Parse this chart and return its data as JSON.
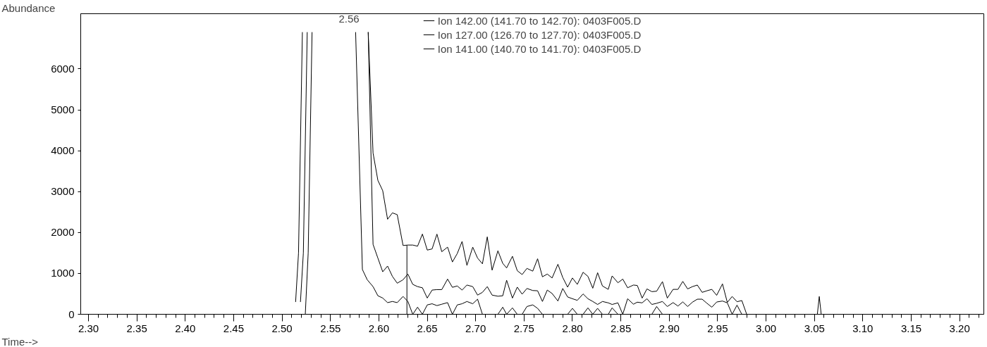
{
  "chart_data": {
    "type": "line",
    "xlabel": "Time-->",
    "ylabel": "Abundance",
    "xlim": [
      2.292,
      3.225
    ],
    "ylim": [
      0,
      7350
    ],
    "xticks": [
      {
        "value": 2.3,
        "label": "2.30"
      },
      {
        "value": 2.35,
        "label": "2.35"
      },
      {
        "value": 2.4,
        "label": "2.40"
      },
      {
        "value": 2.45,
        "label": "2.45"
      },
      {
        "value": 2.5,
        "label": "2.50"
      },
      {
        "value": 2.55,
        "label": "2.55"
      },
      {
        "value": 2.6,
        "label": "2.60"
      },
      {
        "value": 2.65,
        "label": "2.65"
      },
      {
        "value": 2.7,
        "label": "2.70"
      },
      {
        "value": 2.75,
        "label": "2.75"
      },
      {
        "value": 2.8,
        "label": "2.80"
      },
      {
        "value": 2.85,
        "label": "2.85"
      },
      {
        "value": 2.9,
        "label": "2.90"
      },
      {
        "value": 2.95,
        "label": "2.95"
      },
      {
        "value": 3.0,
        "label": "3.00"
      },
      {
        "value": 3.05,
        "label": "3.05"
      },
      {
        "value": 3.1,
        "label": "3.10"
      },
      {
        "value": 3.15,
        "label": "3.15"
      },
      {
        "value": 3.2,
        "label": "3.20"
      }
    ],
    "yticks": [
      0,
      1000,
      2000,
      3000,
      4000,
      5000,
      6000
    ],
    "grid": false,
    "legend": "top",
    "marker": "none",
    "line_style": "solid",
    "annotations": [
      "2.56"
    ],
    "series": [
      {
        "name": "Ion 142.00 (141.70 to 142.70): 0403F005.D",
        "color": "#000000",
        "x": [
          2.292,
          2.524,
          2.527,
          2.531,
          2.55,
          2.589,
          2.594,
          2.599,
          2.604,
          2.609,
          2.614,
          2.619,
          2.625,
          2.63,
          2.635,
          2.64,
          2.645,
          2.65,
          2.655,
          2.66,
          2.665,
          2.671,
          2.676,
          2.681,
          2.686,
          2.691,
          2.697,
          2.702,
          2.707,
          2.712,
          2.717,
          2.723,
          2.728,
          2.732,
          2.738,
          2.743,
          2.748,
          2.753,
          2.759,
          2.764,
          2.769,
          2.774,
          2.779,
          2.785,
          2.79,
          2.795,
          2.8,
          2.805,
          2.811,
          2.816,
          2.821,
          2.826,
          2.831,
          2.837,
          2.841,
          2.847,
          2.852,
          2.857,
          2.863,
          2.867,
          2.872,
          2.877,
          2.882,
          2.887,
          2.893,
          2.898,
          2.904,
          2.909,
          2.914,
          2.919,
          2.924,
          2.929,
          2.934,
          2.939,
          2.944,
          2.949,
          2.955,
          2.96,
          2.965,
          2.97,
          2.975,
          2.98,
          3.053,
          3.055,
          3.057,
          3.22
        ],
        "values": [
          0,
          0,
          1500,
          6900,
          null,
          6900,
          3944,
          3274,
          3022,
          2324,
          2480,
          2436,
          1682,
          1693,
          1693,
          1665,
          1961,
          1570,
          1598,
          1960,
          1530,
          1642,
          1279,
          1485,
          1781,
          1195,
          1642,
          1374,
          1234,
          1893,
          1078,
          1552,
          1245,
          1133,
          1418,
          1066,
          972,
          1122,
          1055,
          1357,
          916,
          983,
          888,
          1223,
          899,
          664,
          888,
          731,
          1027,
          927,
          637,
          1016,
          692,
          609,
          938,
          771,
          860,
          648,
          715,
          704,
          396,
          620,
          553,
          564,
          798,
          396,
          609,
          609,
          804,
          620,
          676,
          715,
          536,
          575,
          609,
          463,
          743,
          290,
          435,
          307,
          335,
          0,
          0,
          435,
          0,
          0
        ]
      },
      {
        "name": "Ion 127.00 (126.70 to 127.70): 0403F005.D",
        "color": "#000000",
        "x": [
          2.519,
          2.522,
          2.526,
          2.55,
          2.589,
          2.594,
          2.599,
          2.604,
          2.609,
          2.614,
          2.619,
          2.625,
          2.63,
          2.635,
          2.64,
          2.645,
          2.65,
          2.655,
          2.66,
          2.665,
          2.671,
          2.676,
          2.681,
          2.686,
          2.691,
          2.697,
          2.702,
          2.707,
          2.712,
          2.717,
          2.723,
          2.728,
          2.732,
          2.738,
          2.743,
          2.748,
          2.753,
          2.759,
          2.764,
          2.769,
          2.774,
          2.779,
          2.785,
          2.79,
          2.795,
          2.8,
          2.805,
          2.811,
          2.816,
          2.821,
          2.826,
          2.831,
          2.837,
          2.841,
          2.847,
          2.852,
          2.857,
          2.863,
          2.867,
          2.872,
          2.877,
          2.882,
          2.887,
          2.893,
          2.898,
          2.904,
          2.909,
          2.914,
          2.919,
          2.924,
          2.929,
          2.934,
          2.939,
          2.944,
          2.949,
          2.955,
          2.96,
          2.965
        ],
        "values": [
          300,
          1500,
          6900,
          null,
          6900,
          1709,
          1374,
          1039,
          1179,
          927,
          760,
          844,
          983,
          732,
          676,
          648,
          397,
          592,
          603,
          603,
          860,
          659,
          692,
          592,
          715,
          676,
          469,
          536,
          676,
          469,
          441,
          452,
          832,
          396,
          664,
          491,
          631,
          581,
          575,
          313,
          592,
          508,
          324,
          631,
          424,
          380,
          341,
          497,
          380,
          313,
          240,
          313,
          279,
          240,
          279,
          0,
          380,
          246,
          296,
          279,
          380,
          240,
          268,
          313,
          190,
          285,
          201,
          302,
          190,
          296,
          369,
          369,
          268,
          173,
          300,
          324,
          279,
          0
        ]
      },
      {
        "name": "Ion 141.00 (140.70 to 141.70): 0403F005.D",
        "color": "#000000",
        "x": [
          2.514,
          2.517,
          2.521,
          2.55,
          2.576,
          2.583,
          2.588,
          2.594,
          2.599,
          2.604,
          2.609,
          2.614,
          2.619,
          2.625,
          2.63,
          2.635,
          2.64,
          2.645,
          2.65,
          2.655,
          2.66,
          2.665,
          2.671,
          2.676,
          2.681,
          2.686,
          2.691,
          2.697,
          2.702,
          2.707,
          2.712,
          2.717,
          2.723,
          2.728,
          2.732,
          2.738,
          2.743,
          2.748,
          2.753,
          2.759,
          2.764,
          2.769,
          2.774,
          2.779,
          2.785,
          2.79,
          2.795,
          2.8,
          2.805,
          2.811,
          2.816,
          2.821,
          2.826,
          2.831,
          2.837,
          2.841,
          2.847,
          2.852,
          2.857,
          2.863,
          2.867,
          2.872,
          2.877,
          2.882,
          2.887,
          2.893,
          2.898,
          2.904,
          2.909,
          2.914,
          2.919,
          2.924,
          2.929,
          2.934,
          2.939,
          2.944,
          2.949,
          2.955,
          2.96,
          2.965,
          2.97,
          2.975
        ],
        "values": [
          300,
          1500,
          6900,
          null,
          6900,
          1095,
          844,
          676,
          453,
          397,
          285,
          313,
          285,
          436,
          313,
          0,
          173,
          0,
          229,
          257,
          212,
          246,
          285,
          0,
          229,
          257,
          313,
          257,
          369,
          0,
          0,
          0,
          0,
          173,
          0,
          156,
          0,
          0,
          190,
          229,
          145,
          0,
          0,
          0,
          0,
          0,
          0,
          145,
          0,
          0,
          156,
          0,
          145,
          0,
          0,
          156,
          0,
          0,
          0,
          0,
          0,
          0,
          0,
          0,
          190,
          0,
          0,
          0,
          0,
          0,
          0,
          0,
          0,
          0,
          0,
          0,
          0,
          0,
          0,
          0,
          223,
          0
        ]
      },
      {
        "color": "#000000",
        "x": [
          2.629,
          2.629
        ],
        "values": [
          0,
          1690
        ]
      }
    ]
  }
}
